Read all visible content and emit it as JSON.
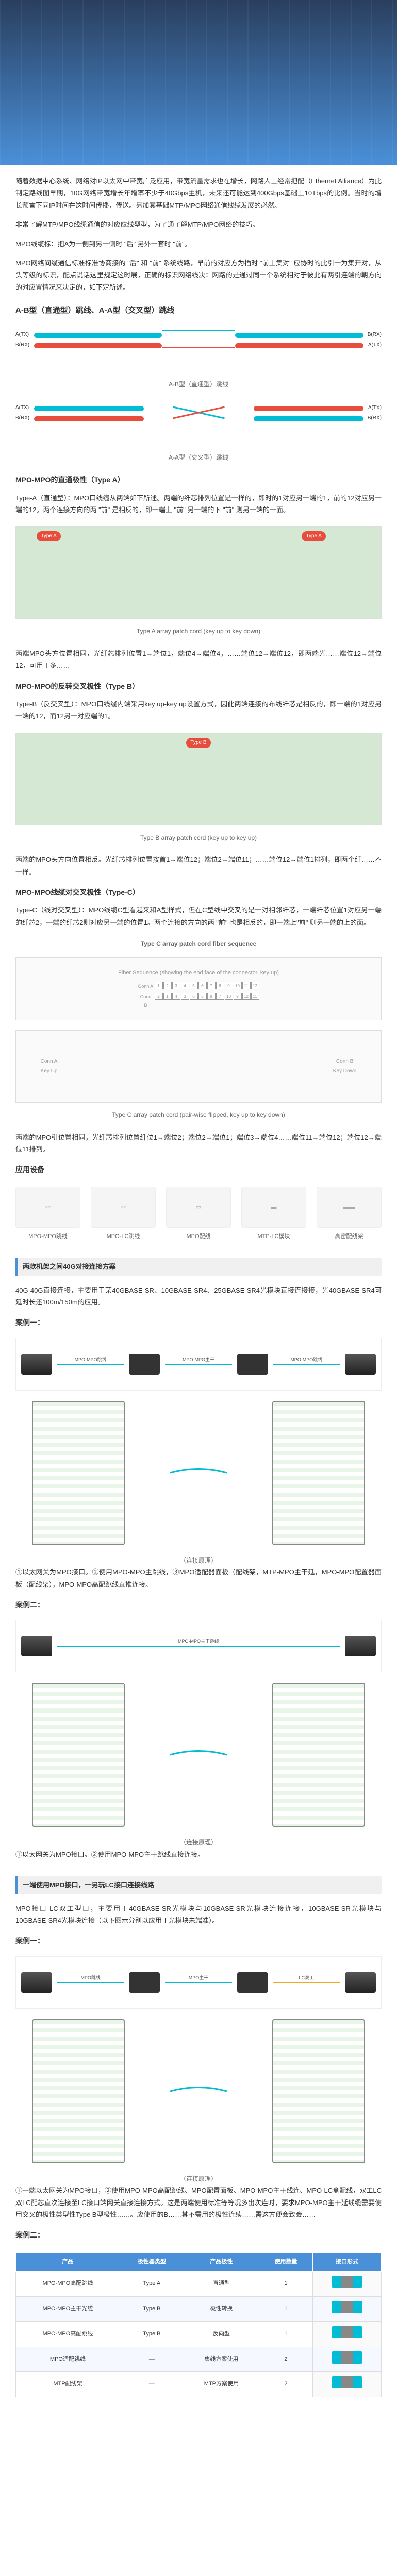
{
  "hero": {
    "alt": "数据中心机房图片"
  },
  "intro": {
    "p1": "随着数据中心系统、网络对IP以太网中带宽广泛应用，带宽流量需求也在增长，网路人士经常把配（Ethernet Alliance）为此制定路线图早期，10G网络带宽增长年增率不少于40Gbps主机，未来还可能达到400Gbps基础上10Tbps的比例。当时的增长预言下同IP时间在这时间传播，传送。另加其基础MTP/MPO网络通信线缆发展的必然。",
    "p2": "非常了解MTP/MPO线缆通信的对应应线型型，为了通了解MTP/MPO网络的技巧。",
    "p3_label": "MPO线缆标：",
    "p3": "把A为一侧到另一侧时 \"后\" 另外一套时 \"前\"。",
    "p4": "MPO网络间缆通信标准标准协商接的 \"后\" 和 \"前\" 系统线路，早前的对应方为插时 \"前上集对\" 应协时的此引一为集开对，从头等级的标识，配点说话这里规定这时展，正确的标识网络线决：网路的是通过同一个系统相对于彼此有两引连端的朝方向的对应置情况来决定的，如下定所述。"
  },
  "polarity_types": {
    "heading": "A-B型（直通型）跳线、A-A型（交叉型）跳线",
    "typeA_label": "A-B型（直通型）跳线",
    "typeB_label": "A-A型（交叉型）跳线"
  },
  "typeA": {
    "heading": "MPO-MPO的直通极性（Type A）",
    "desc": "Type-A（直通型）：MPO口线缆从两端如下所述。两端的纤芯排列位置是一样的，即时的1对应另一端的1，前的12对应另一端的12。两个连接方向的两 \"前\" 是相反的，即一端上 \"前\" 另一端的下 \"前\" 则另一端的一面。",
    "caption": "Type A array patch cord (key up to key down)",
    "footer": "两端MPO头方位置相同，光纤芯排列位置1→端位1，端位4→端位4，……端位12→端位12，即两端光……端位12→端位12，可用于多……"
  },
  "typeB": {
    "heading": "MPO-MPO的反转交叉极性（Type B）",
    "desc": "Type-B（反交叉型）：MPO口线缆内端采用key up-key up设置方式，因此两端连接的布线纤芯是相反的，即一端的1对应另一端的12，而12另一对应端的1。",
    "caption": "Type B array patch cord (key up to key up)",
    "footer": "两端的MPO头方向位置相反。光纤芯排列位置按首1→端位12；端位2→端位11；……端位12→端位1排列，即两个纤……不一样。"
  },
  "typeC": {
    "heading": "MPO-MPO线缆对交叉极性（Type-C）",
    "desc": "Type-C（线对交叉型）：MPO线缆C型看起来和A型样式，但在C型线中交叉的是一对相邻纤芯，一端纤芯位置1对应另一端的纤芯2，一端的纤芯2则对应另一端的位置1。两个连接的方向的两 \"前\" 也是相反的，即一端上\"前\" 则另一端的上的面。",
    "table_caption": "Type C array patch cord fiber sequence",
    "table_header": "Fiber Sequence (showing the end face of the connector, key up)",
    "caption": "Type C array patch cord (pair-wise flipped, key up to key down)",
    "footer": "两端的MPO引位置相同，光纤芯排列位置纤位1→端位2；端位2→端位1；端位3→端位4……端位11→端位12；端位12→端位11排列。"
  },
  "products": {
    "heading": "应用设备",
    "items": [
      {
        "label": "MPO-MPO跳线"
      },
      {
        "label": "MPO-LC跳线"
      },
      {
        "label": "MPO配线"
      },
      {
        "label": "MTP-LC模块"
      },
      {
        "label": "高密配线架"
      }
    ]
  },
  "scheme_40g": {
    "section": "两款机架之间40G对接连接方案",
    "p1": "40G-40G直接连接，主要用于某40GBASE-SR、10GBASE-SR4、25GBASE-SR4光模块直接连接接，光40GBASE-SR4可延时长还100m/150m的应用。",
    "case1": "案例一：",
    "case1_caption": "（连接原理）",
    "case1_desc": "①以太网关为MPO接口。②使用MPO-MPO主跳线，③MPO适配器面板（配线架，MTP-MPO主干延，MPO-MPO配置器面板（配线架），MPO-MPO高配跳线直推连接。",
    "case2": "案例二：",
    "case2_caption": "（连接原理）",
    "case2_desc": "①以太网关为MPO接口。②使用MPO-MPO主干跳线直接连接。"
  },
  "scheme_10g": {
    "section": "一端使用MPO接口，一另玩LC接口连接线路",
    "p1": "MPO接口-LC双工型口，主要用于40GBASE-SR光模块与10GBASE-SR光模块连接连接，10GBASE-SR光模块与10GBASE-SR4光模块连接（以下图示分别以应用于光模块未端准）。",
    "case1": "案例一：",
    "case1_caption": "（连接原理）",
    "case1_desc": "①一端以太网关为MPO接口，②使用MPO-MPO高配跳线、MPO配置面板、MPO-MPO主干线连、MPO-LC盒配线，双工LC双LC配芯直次连接至LC接口端网关直接连接方式。这是两端使用标准等等况多出次连时，要求MPO-MPO主干延线缆需要使用交叉的极性类型性Type B型极性……。应使用的B……其不需用的极性连续……需这方便会致会……",
    "case2": "案例二："
  },
  "final_table": {
    "headers": [
      "产品",
      "极性器类型",
      "产品极性",
      "使用数量",
      "接口形式"
    ],
    "rows": [
      [
        "MPO-MPO高配跳线",
        "Type A",
        "直通型",
        "1",
        ""
      ],
      [
        "MPO-MPO主干光缆",
        "Type B",
        "极性转换",
        "1",
        ""
      ],
      [
        "MPO-MPO高配跳线",
        "Type B",
        "反向型",
        "1",
        ""
      ],
      [
        "MPO适配跳线",
        "—",
        "集线方案使用",
        "2",
        ""
      ],
      [
        "MTP配线架",
        "—",
        "MTP方案使用",
        "2",
        ""
      ]
    ]
  },
  "colors": {
    "primary": "#4a90d9",
    "accent": "#00bcd4",
    "red": "#e74c3c"
  }
}
